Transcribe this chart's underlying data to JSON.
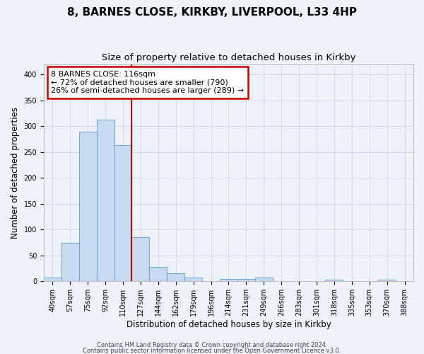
{
  "title1": "8, BARNES CLOSE, KIRKBY, LIVERPOOL, L33 4HP",
  "title2": "Size of property relative to detached houses in Kirkby",
  "xlabel": "Distribution of detached houses by size in Kirkby",
  "ylabel": "Number of detached properties",
  "bar_labels": [
    "40sqm",
    "57sqm",
    "75sqm",
    "92sqm",
    "110sqm",
    "127sqm",
    "144sqm",
    "162sqm",
    "179sqm",
    "196sqm",
    "214sqm",
    "231sqm",
    "249sqm",
    "266sqm",
    "283sqm",
    "301sqm",
    "318sqm",
    "335sqm",
    "353sqm",
    "370sqm",
    "388sqm"
  ],
  "bar_values": [
    8,
    75,
    290,
    312,
    263,
    85,
    28,
    15,
    8,
    0,
    5,
    5,
    8,
    0,
    0,
    0,
    3,
    0,
    0,
    3,
    0
  ],
  "bar_color": "#c8d9f0",
  "bar_edge_color": "#5b9bd5",
  "ylim": [
    0,
    420
  ],
  "yticks": [
    0,
    50,
    100,
    150,
    200,
    250,
    300,
    350,
    400
  ],
  "vline_color": "#cc0000",
  "annotation_title": "8 BARNES CLOSE: 116sqm",
  "annotation_line1": "← 72% of detached houses are smaller (790)",
  "annotation_line2": "26% of semi-detached houses are larger (289) →",
  "annotation_box_edge_color": "#cc0000",
  "footer1": "Contains HM Land Registry data © Crown copyright and database right 2024.",
  "footer2": "Contains public sector information licensed under the Open Government Licence v3.0.",
  "bg_color": "#eef2fa",
  "grid_color": "#d0d8ea",
  "title1_fontsize": 11,
  "title2_fontsize": 9.5,
  "ylabel_fontsize": 8.5,
  "xlabel_fontsize": 8.5,
  "tick_fontsize": 7,
  "annot_fontsize": 8,
  "footer_fontsize": 6
}
